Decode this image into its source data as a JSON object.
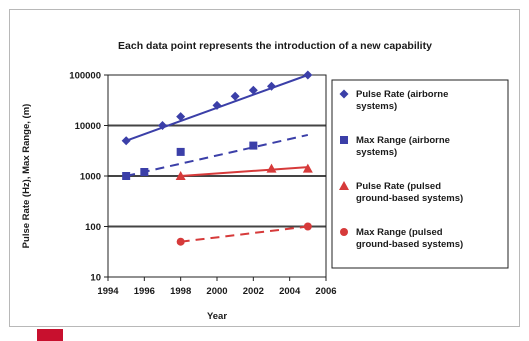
{
  "chart_data": {
    "type": "line",
    "title": "Each data point represents the introduction of a new capability",
    "xlabel": "Year",
    "ylabel": "Pulse Rate (Hz), Max Range, (m)",
    "x_ticks": [
      "1994",
      "1996",
      "1998",
      "2000",
      "2002",
      "2004",
      "2006"
    ],
    "y_ticks": [
      "10",
      "100",
      "1000",
      "10000",
      "100000"
    ],
    "xlim": [
      1994,
      2006
    ],
    "ylim": [
      10,
      100000
    ],
    "y_scale": "log",
    "grid": "horizontal",
    "legend_position": "right",
    "series": [
      {
        "name": "Pulse Rate (airborne systems)",
        "marker": "diamond",
        "color": "#3b3fa8",
        "points": [
          [
            1995,
            5000
          ],
          [
            1997,
            10000
          ],
          [
            1998,
            15000
          ],
          [
            2000,
            25000
          ],
          [
            2001,
            38000
          ],
          [
            2002,
            50000
          ],
          [
            2003,
            60000
          ],
          [
            2005,
            100000
          ]
        ],
        "trend": [
          [
            1995,
            5000
          ],
          [
            2005,
            100000
          ]
        ],
        "trend_style": "solid"
      },
      {
        "name": "Max Range (airborne systems)",
        "marker": "square",
        "color": "#3b3fa8",
        "points": [
          [
            1995,
            1000
          ],
          [
            1996,
            1200
          ],
          [
            1998,
            3000
          ],
          [
            2002,
            4000
          ]
        ],
        "trend": [
          [
            1995,
            1000
          ],
          [
            2005,
            6500
          ]
        ],
        "trend_style": "dashed"
      },
      {
        "name": "Pulse Rate (pulsed ground-based systems)",
        "marker": "triangle",
        "color": "#d63a3a",
        "points": [
          [
            1998,
            1000
          ],
          [
            2003,
            1400
          ],
          [
            2005,
            1400
          ]
        ],
        "trend": [
          [
            1998,
            1000
          ],
          [
            2005,
            1500
          ]
        ],
        "trend_style": "solid"
      },
      {
        "name": "Max Range (pulsed ground-based systems)",
        "marker": "circle",
        "color": "#d63a3a",
        "points": [
          [
            1998,
            50
          ],
          [
            2005,
            100
          ]
        ],
        "trend": [
          [
            1998,
            50
          ],
          [
            2005,
            100
          ]
        ],
        "trend_style": "dashed"
      }
    ]
  }
}
